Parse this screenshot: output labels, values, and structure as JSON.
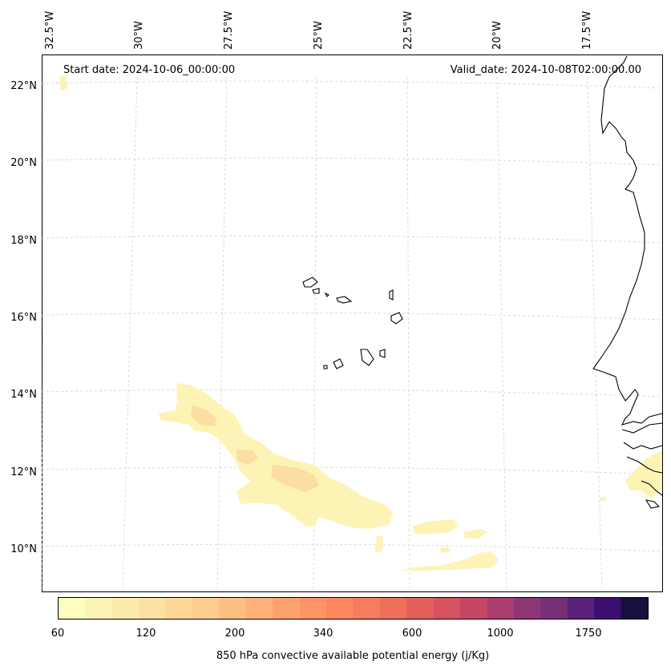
{
  "header": {
    "start_date": "Start date: 2024-10-06_00:00:00",
    "valid_date": "Valid_date: 2024-10-08T02:00:00.00"
  },
  "map": {
    "lon_labels": [
      "32.5°W",
      "30°W",
      "27.5°W",
      "25°W",
      "22.5°W",
      "20°W",
      "17.5°W"
    ],
    "lat_labels": [
      "22°N",
      "20°N",
      "18°N",
      "16°N",
      "14°N",
      "12°N",
      "10°N"
    ],
    "gridlines": true
  },
  "colorbar": {
    "title": "850 hPa convective available potential energy (j/Kg)",
    "tick_labels": [
      "60",
      "120",
      "200",
      "340",
      "600",
      "1000",
      "1750"
    ],
    "colormap": [
      "#fcfdbf",
      "#fcf4b6",
      "#fdebac",
      "#fde1a2",
      "#fed799",
      "#fecd90",
      "#febf84",
      "#feb078",
      "#fea26d",
      "#fd9465",
      "#fc8761",
      "#f57d5e",
      "#ee6f5a",
      "#e35f5c",
      "#d6525f",
      "#c44866",
      "#ab3e6f",
      "#8f3675",
      "#772f78",
      "#5b227c",
      "#3b0f70",
      "#180f3d"
    ]
  },
  "fields": {
    "cape_colors": [
      "#fef1b4",
      "#fde7aa",
      "#fbd79b"
    ]
  }
}
